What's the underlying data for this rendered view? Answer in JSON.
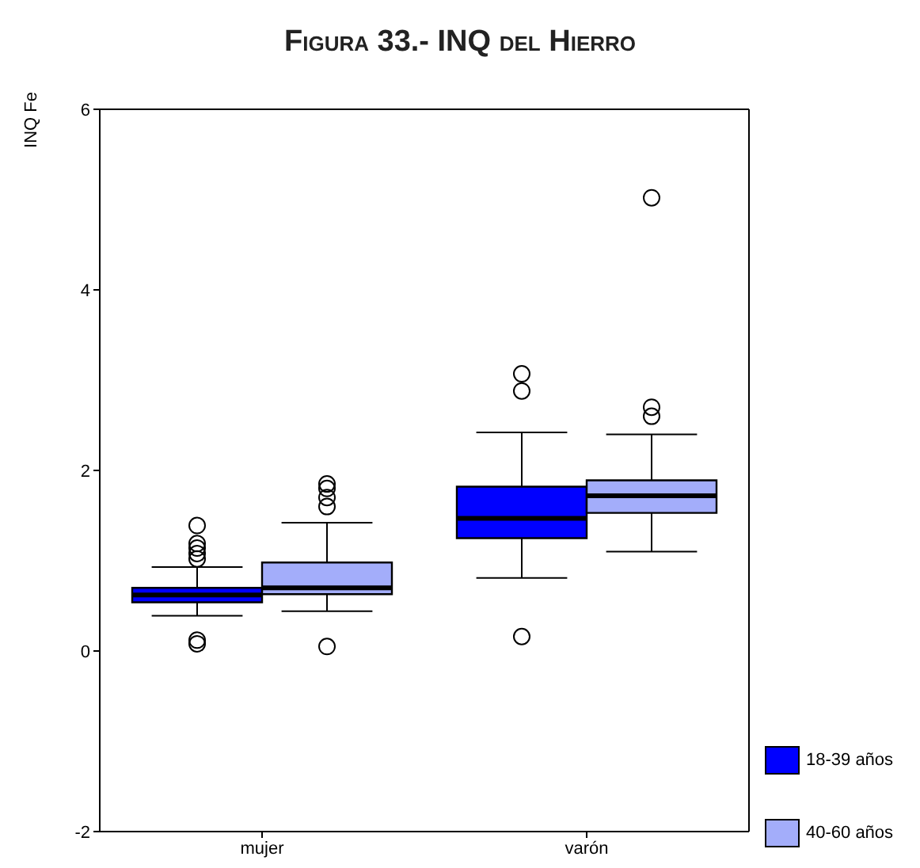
{
  "chart_data": {
    "type": "box",
    "title": "Figura 33.- INQ del Hierro",
    "ylabel": "INQ Fe",
    "categories": [
      "mujer",
      "varón"
    ],
    "ylim": [
      -2,
      6
    ],
    "yticks": [
      -2,
      0,
      2,
      4,
      6
    ],
    "legend": "bottom right",
    "series": [
      {
        "name": "18-39 años",
        "color": "#0000ff",
        "boxes": [
          {
            "low": 0.39,
            "q1": 0.54,
            "median": 0.62,
            "q3": 0.7,
            "high": 0.93,
            "outliers": [
              0.08,
              0.12,
              1.02,
              1.08,
              1.14,
              1.19,
              1.39
            ]
          },
          {
            "low": 0.81,
            "q1": 1.25,
            "median": 1.47,
            "q3": 1.82,
            "high": 2.42,
            "outliers": [
              0.16,
              2.88,
              3.07
            ]
          }
        ]
      },
      {
        "name": "40-60 años",
        "color": "#a3adfa",
        "boxes": [
          {
            "low": 0.44,
            "q1": 0.63,
            "median": 0.7,
            "q3": 0.98,
            "high": 1.42,
            "outliers": [
              0.05,
              1.6,
              1.7,
              1.8,
              1.85
            ]
          },
          {
            "low": 1.1,
            "q1": 1.53,
            "median": 1.72,
            "q3": 1.89,
            "high": 2.4,
            "outliers": [
              2.6,
              2.7,
              5.02
            ]
          }
        ]
      }
    ]
  }
}
